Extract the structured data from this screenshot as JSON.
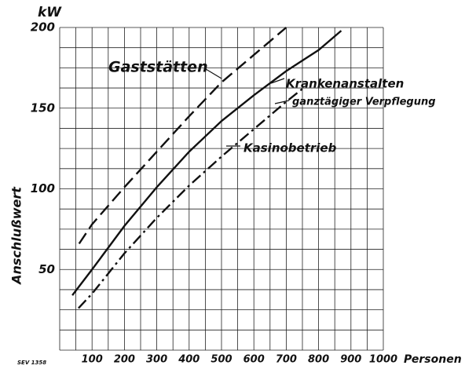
{
  "chart_data": {
    "type": "line",
    "y_label": "kW",
    "y_axis_title": "Anschlußwert",
    "x_axis_title": "Personen",
    "xlim": [
      0,
      1000
    ],
    "ylim": [
      0,
      200
    ],
    "xticks": [
      100,
      200,
      300,
      400,
      500,
      600,
      700,
      800,
      900,
      1000
    ],
    "yticks": [
      50,
      100,
      150,
      200
    ],
    "x_grid": [
      0,
      50,
      100,
      150,
      200,
      250,
      300,
      350,
      400,
      450,
      500,
      550,
      600,
      650,
      700,
      750,
      800,
      850,
      900,
      950,
      1000
    ],
    "y_grid": [
      0,
      12.5,
      25,
      37.5,
      50,
      62.5,
      75,
      87.5,
      100,
      112.5,
      125,
      137.5,
      150,
      162.5,
      175,
      187.5,
      200
    ],
    "grid": true,
    "color": "#111111",
    "series": [
      {
        "name": "Gaststätten",
        "style": "dashed",
        "x": [
          60,
          100,
          200,
          300,
          400,
          500,
          600,
          700
        ],
        "values": [
          66,
          78,
          101,
          123,
          145,
          166,
          183,
          200
        ]
      },
      {
        "name": "Krankenanstalten",
        "note": "ganztägiger Verpflegung",
        "style": "solid",
        "x": [
          39,
          100,
          200,
          300,
          400,
          500,
          600,
          700,
          800,
          870
        ],
        "values": [
          34,
          50,
          77,
          101,
          123,
          142,
          158,
          173,
          186,
          198
        ]
      },
      {
        "name": "Kasinobetrieb",
        "style": "dashdot",
        "x": [
          58,
          100,
          200,
          300,
          400,
          500,
          600,
          700,
          750
        ],
        "values": [
          26,
          35,
          60,
          82,
          102,
          120,
          137,
          154,
          162
        ]
      }
    ],
    "footnote": "SEV 1358"
  }
}
